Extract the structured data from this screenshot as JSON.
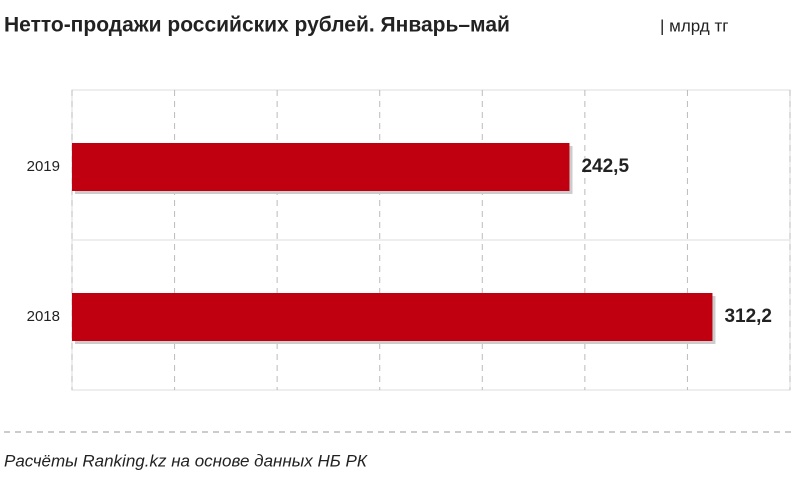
{
  "chart_data": {
    "type": "bar",
    "orientation": "horizontal",
    "title": "Нетто-продажи российских рублей. Январь–май",
    "subtitle": "| млрд тг",
    "categories": [
      "2019",
      "2018"
    ],
    "values": [
      242.5,
      312.2
    ],
    "value_labels": [
      "242,5",
      "312,2"
    ],
    "color": "#c00010",
    "xlim": [
      0,
      350
    ],
    "xticks": [
      0,
      50,
      100,
      150,
      200,
      250,
      300,
      350
    ],
    "grid": true,
    "source": "Расчёты Ranking.kz на основе данных НБ РК"
  }
}
